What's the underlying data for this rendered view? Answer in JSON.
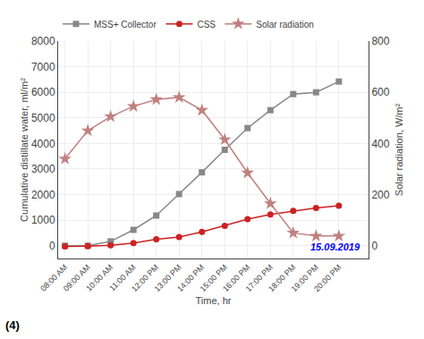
{
  "chart_data": {
    "type": "line",
    "xlabel": "Time, hr",
    "ylabel": "Cumulative distillate water, ml/m²",
    "y2label": "Solar radiation, W/m²",
    "categories": [
      "08:00 AM",
      "09:00 AM",
      "10:00 AM",
      "11:00 AM",
      "12:00 PM",
      "13:00 PM",
      "14:00 PM",
      "15:00 PM",
      "16:00 PM",
      "17:00 PM",
      "18:00 PM",
      "19:00 PM",
      "20:00 PM",
      null
    ],
    "series": [
      {
        "name": "MSS+ Collector",
        "color": "#888888",
        "marker": "square",
        "values": [
          0,
          0,
          170,
          620,
          1180,
          2020,
          2870,
          3750,
          4600,
          5300,
          5930,
          6000,
          6420,
          null
        ]
      },
      {
        "name": "CSS",
        "color": "#cc2222",
        "marker": "circle",
        "values": [
          -30,
          -20,
          20,
          100,
          250,
          340,
          540,
          780,
          1040,
          1220,
          1360,
          1480,
          1560,
          null
        ]
      },
      {
        "name": "Solar radiation",
        "color": "#c08080",
        "marker": "star",
        "axis": "y2",
        "values": [
          340,
          450,
          505,
          545,
          572,
          580,
          530,
          415,
          285,
          165,
          50,
          38,
          38,
          null
        ]
      }
    ],
    "ylim": [
      -500,
      8000
    ],
    "yticks": [
      0,
      1000,
      2000,
      3000,
      4000,
      5000,
      6000,
      7000,
      8000
    ],
    "y2lim": [
      -50,
      800
    ],
    "y2ticks": [
      0,
      200,
      400,
      600,
      800
    ],
    "grid": true,
    "legend": "upper left",
    "annotations": [
      {
        "text": "15.09.2019",
        "color": "blue"
      },
      {
        "text": "(4)",
        "color": "black"
      }
    ]
  }
}
